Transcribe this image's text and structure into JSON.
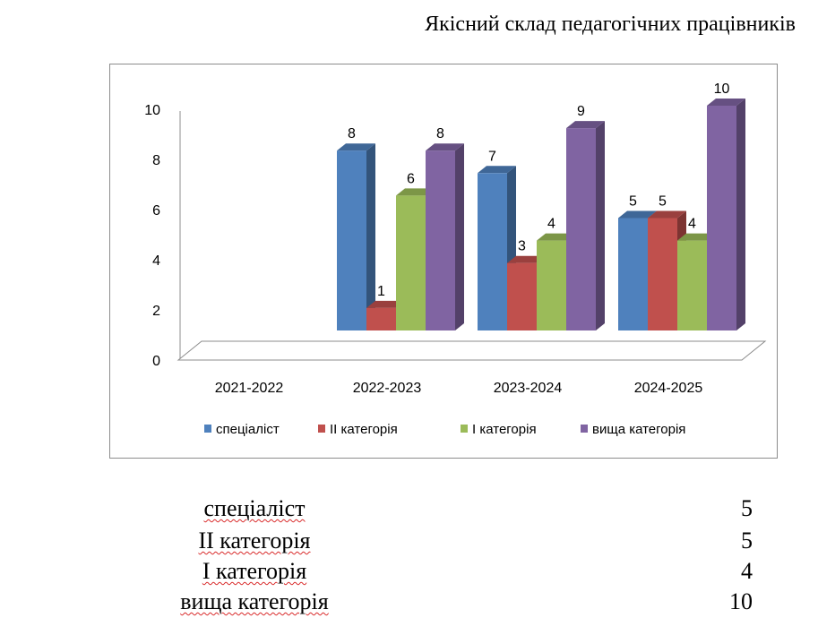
{
  "title": "Якісний склад педагогічних працівників",
  "chart_data": {
    "type": "bar",
    "three_d": true,
    "categories": [
      "2021-2022",
      "2022-2023",
      "2023-2024",
      "2024-2025"
    ],
    "series": [
      {
        "name": "спеціаліст",
        "color": "#4f81bd",
        "values": [
          0,
          8,
          7,
          5
        ]
      },
      {
        "name": "ІІ категорія",
        "color": "#c0504d",
        "values": [
          0,
          1,
          3,
          5
        ]
      },
      {
        "name": "І категорія",
        "color": "#9bbb59",
        "values": [
          0,
          6,
          4,
          4
        ]
      },
      {
        "name": "вища категорія",
        "color": "#8064a2",
        "values": [
          0,
          8,
          9,
          10
        ]
      }
    ],
    "data_labels": [
      [
        null,
        "8",
        "7",
        "5"
      ],
      [
        null,
        "1",
        "3",
        "5"
      ],
      [
        null,
        "6",
        "4",
        "4"
      ],
      [
        null,
        "8",
        "9",
        "10"
      ]
    ],
    "ylim": [
      0,
      10
    ],
    "yticks": [
      "0",
      "2",
      "4",
      "6",
      "8",
      "10"
    ],
    "grid": false,
    "legend_position": "bottom"
  },
  "summary": [
    {
      "label": "спеціаліст",
      "value": "5"
    },
    {
      "label": "ІІ категорія",
      "value": "5"
    },
    {
      "label": "І категорія",
      "value": "4"
    },
    {
      "label": "вища категорія",
      "value": "10"
    }
  ]
}
